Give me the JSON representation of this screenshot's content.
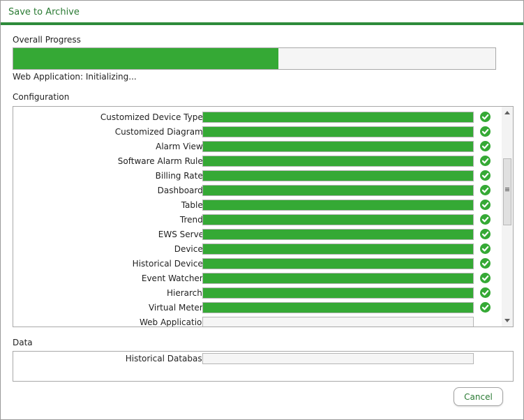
{
  "window": {
    "title": "Save to Archive"
  },
  "overall": {
    "label": "Overall Progress",
    "progress": 0.55,
    "status": "Web Application: Initializing..."
  },
  "configuration": {
    "label": "Configuration",
    "tasks": [
      {
        "label": "Customized Device Types",
        "progress": 1.0,
        "done": true
      },
      {
        "label": "Customized Diagrams",
        "progress": 1.0,
        "done": true
      },
      {
        "label": "Alarm Views",
        "progress": 1.0,
        "done": true
      },
      {
        "label": "Software Alarm Rules",
        "progress": 1.0,
        "done": true
      },
      {
        "label": "Billing Rates",
        "progress": 1.0,
        "done": true
      },
      {
        "label": "Dashboards",
        "progress": 1.0,
        "done": true
      },
      {
        "label": "Tables",
        "progress": 1.0,
        "done": true
      },
      {
        "label": "Trends",
        "progress": 1.0,
        "done": true
      },
      {
        "label": "EWS Server",
        "progress": 1.0,
        "done": true
      },
      {
        "label": "Devices",
        "progress": 1.0,
        "done": true
      },
      {
        "label": "Historical Devices",
        "progress": 1.0,
        "done": true
      },
      {
        "label": "Event Watchers",
        "progress": 1.0,
        "done": true
      },
      {
        "label": "Hierarchy",
        "progress": 1.0,
        "done": true
      },
      {
        "label": "Virtual Meters",
        "progress": 1.0,
        "done": true
      },
      {
        "label": "Web Application",
        "progress": 0.0,
        "done": false
      }
    ]
  },
  "data": {
    "label": "Data",
    "tasks": [
      {
        "label": "Historical Database",
        "progress": 0.0,
        "done": false
      }
    ]
  },
  "buttons": {
    "cancel": "Cancel"
  },
  "colors": {
    "accent": "#2e8b3a",
    "progress_fill": "#35a935",
    "title_text": "#2a7a33"
  }
}
